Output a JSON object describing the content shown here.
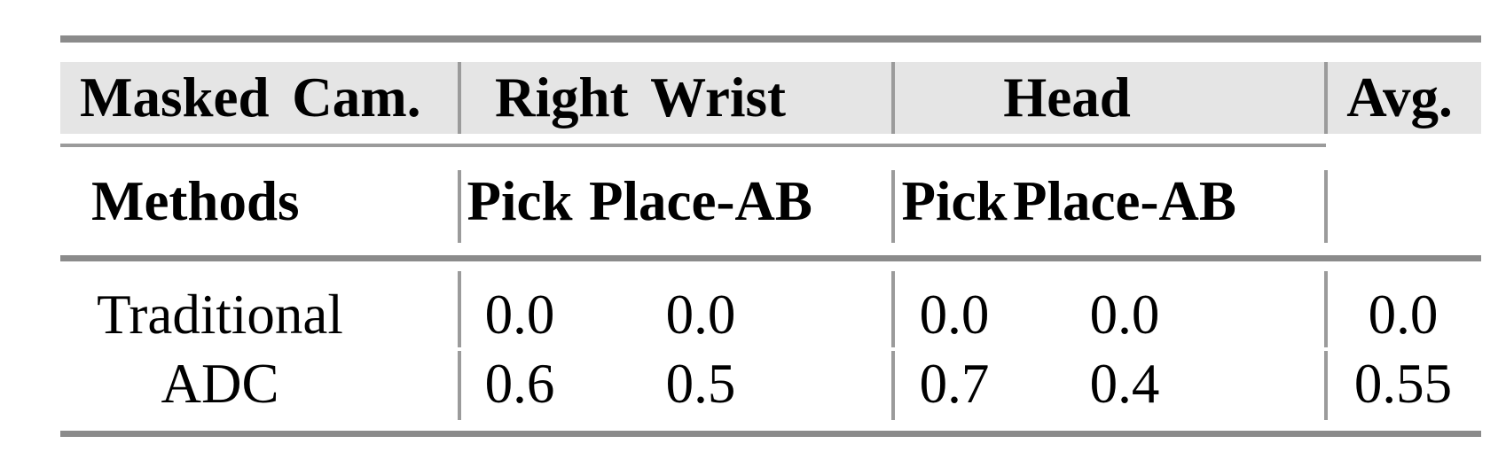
{
  "table": {
    "top_header": {
      "masked_cam": "Masked Cam.",
      "right_wrist": "Right Wrist",
      "head": "Head",
      "avg": "Avg."
    },
    "sub_header": {
      "methods": "Methods",
      "rw_pick": "Pick",
      "rw_place": "Place-AB",
      "head_pick": "Pick",
      "head_place": "Place-AB"
    },
    "rows": [
      {
        "method": "Traditional",
        "rw_pick": "0.0",
        "rw_place": "0.0",
        "head_pick": "0.0",
        "head_place": "0.0",
        "avg": "0.0"
      },
      {
        "method": "ADC",
        "rw_pick": "0.6",
        "rw_place": "0.5",
        "head_pick": "0.7",
        "head_place": "0.4",
        "avg": "0.55"
      }
    ],
    "colors": {
      "header_band": "#e5e5e5",
      "rule_heavy": "#8b8b8b",
      "rule_light": "#9b9b9b",
      "text": "#000000"
    }
  },
  "chart_data": {
    "type": "table",
    "columns": [
      "Methods",
      "Right Wrist Pick",
      "Right Wrist Place-AB",
      "Head Pick",
      "Head Place-AB",
      "Avg."
    ],
    "rows": [
      [
        "Traditional",
        0.0,
        0.0,
        0.0,
        0.0,
        0.0
      ],
      [
        "ADC",
        0.6,
        0.5,
        0.7,
        0.4,
        0.55
      ]
    ]
  }
}
